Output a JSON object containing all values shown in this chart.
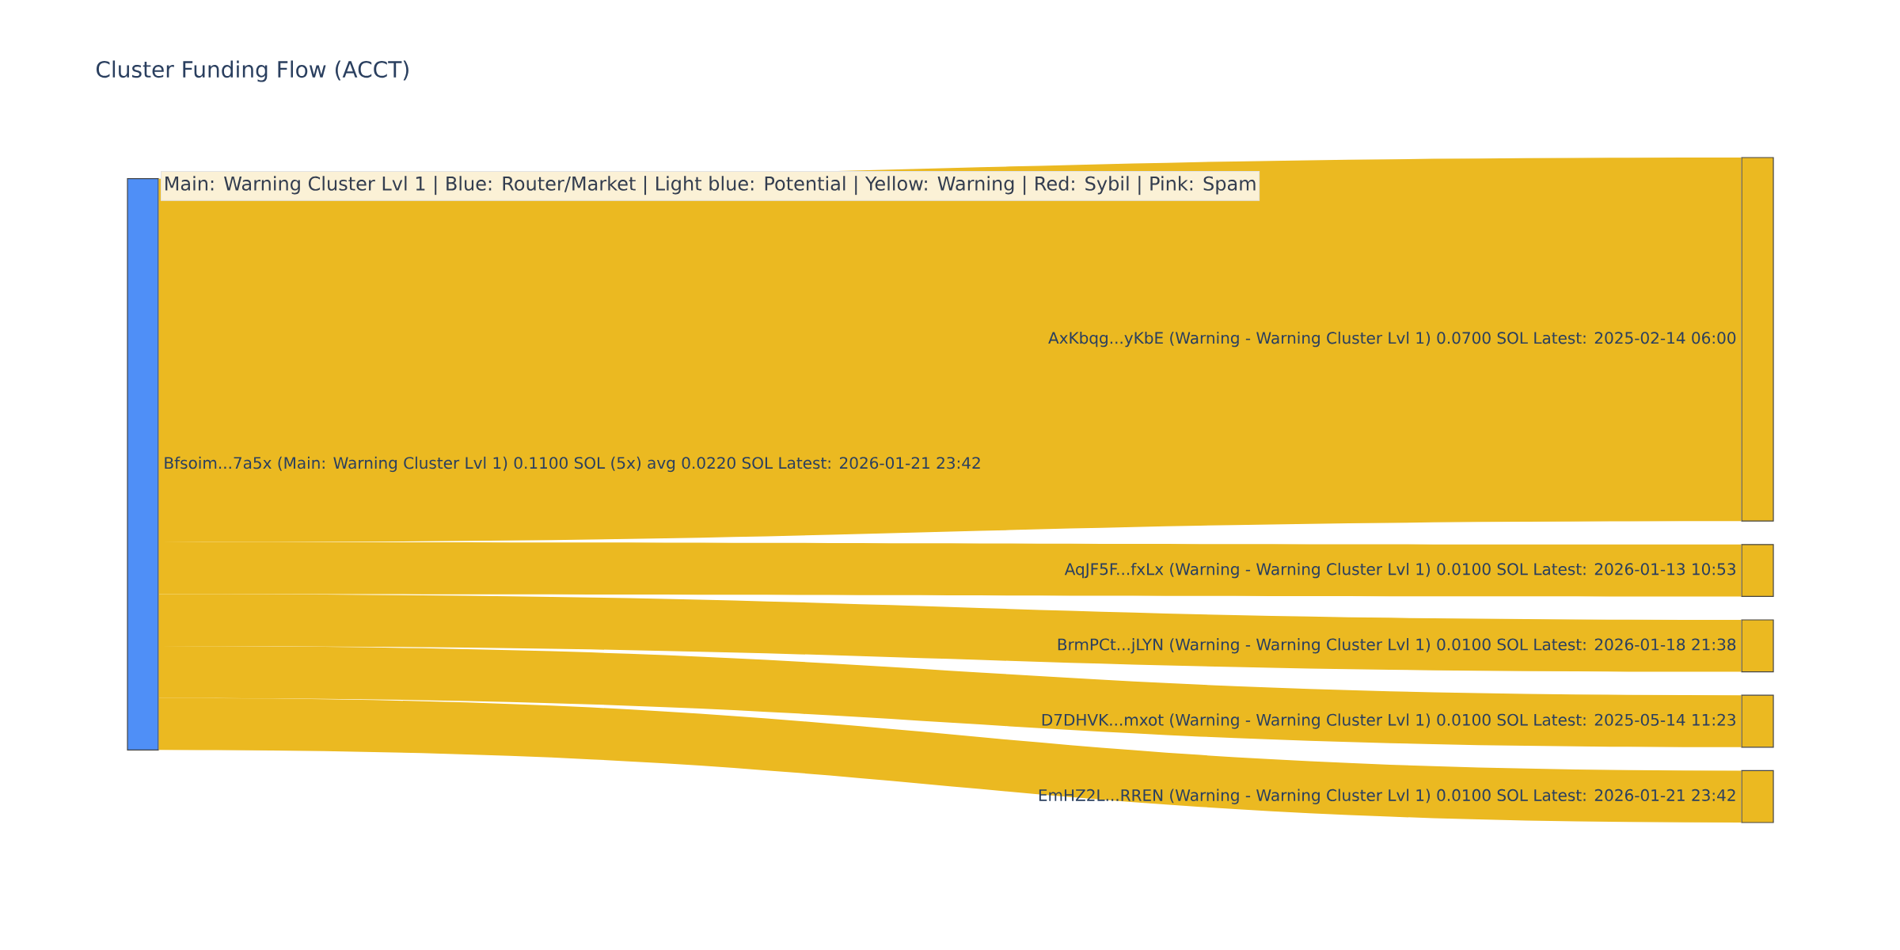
{
  "chart_data": {
    "type": "other",
    "title": "Cluster Funding Flow (ACCT)",
    "categories": [
      "AxKbqg...yKbE (Warning - Warning Cluster Lvl 1)",
      "AqJF5F...fxLx (Warning - Warning Cluster Lvl 1)",
      "BrmPCt...jLYN (Warning - Warning Cluster Lvl 1)",
      "D7DHVK...mxot (Warning - Warning Cluster Lvl 1)",
      "EmHZ2L...RREN (Warning - Warning Cluster Lvl 1)"
    ],
    "series": [
      {
        "name": "Bfsoim...7a5x (Main: Warning Cluster Lvl 1) 0.1100 SOL (5x) avg 0.0220 SOL Latest: 2026-01-21 23:42",
        "color": "#4f8ff7",
        "values": [
          0.07,
          0.01,
          0.01,
          0.01,
          0.01
        ],
        "value_labels": [
          "0.0700 SOL Latest: 2025-02-14 06:00",
          "0.0100 SOL Latest: 2026-01-13 10:53",
          "0.0100 SOL Latest: 2026-01-18 21:38",
          "0.0100 SOL Latest: 2025-05-14 11:23",
          "0.0100 SOL Latest: 2026-01-21 23:42"
        ],
        "colors": [
          "#ebb921",
          "#ebb921",
          "#ebb921",
          "#ebb921",
          "#ebb921"
        ]
      }
    ],
    "annotations": [
      "Main: Warning Cluster Lvl 1  |  Blue: Router/Market | Light blue: Potential | Yellow: Warning | Red: Sybil | Pink: Spam"
    ]
  }
}
